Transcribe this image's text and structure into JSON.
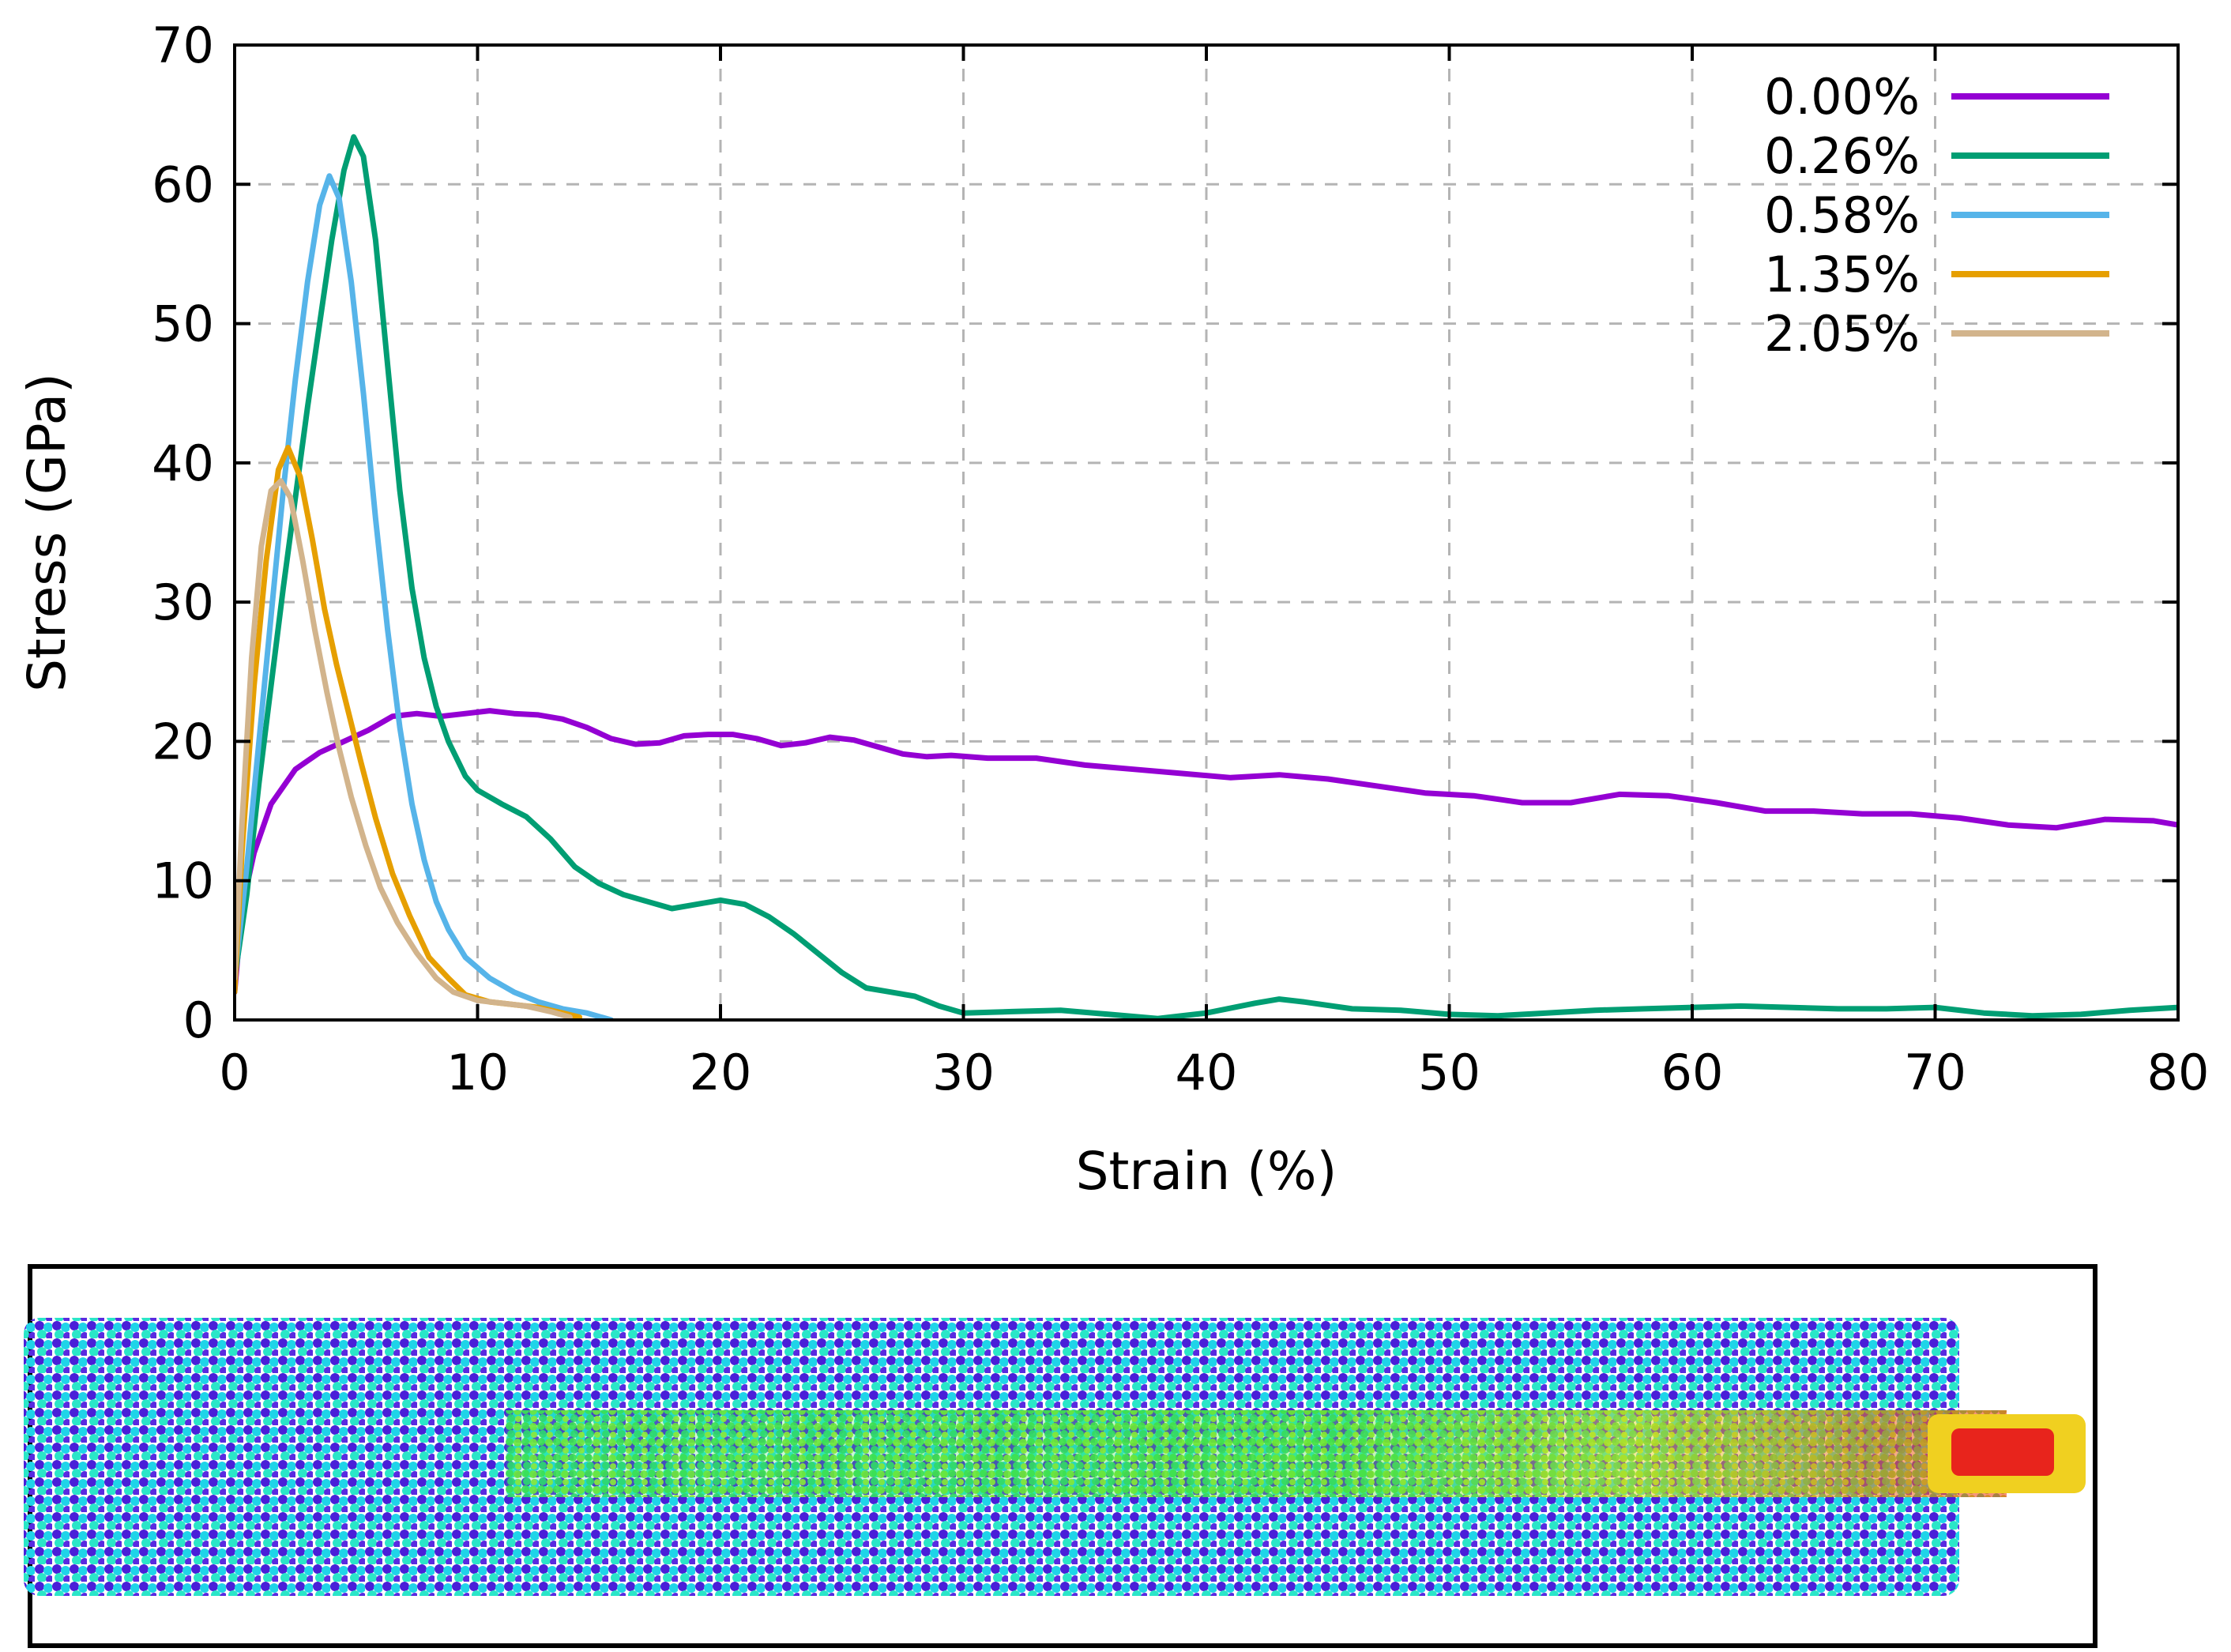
{
  "chart_data": {
    "type": "line",
    "title": "",
    "xlabel": "Strain (%)",
    "ylabel": "Stress (GPa)",
    "xlim": [
      0,
      80
    ],
    "ylim": [
      0,
      70
    ],
    "xticks": [
      0,
      10,
      20,
      30,
      40,
      50,
      60,
      70,
      80
    ],
    "yticks": [
      0,
      10,
      20,
      30,
      40,
      50,
      60,
      70
    ],
    "grid": true,
    "legend_position": "top-right",
    "series": [
      {
        "name": "0.00%",
        "color": "#9400d3",
        "x": [
          0,
          0.3,
          0.8,
          1.5,
          2.5,
          3.5,
          4.5,
          5.5,
          6.5,
          7.5,
          8.5,
          9.5,
          10.5,
          11.5,
          12.5,
          13.5,
          14.5,
          15.5,
          16.5,
          17.5,
          18.5,
          19.5,
          20.5,
          21.5,
          22.5,
          23.5,
          24.5,
          25.5,
          26.5,
          27.5,
          28.5,
          29.5,
          31,
          33,
          35,
          37,
          39,
          41,
          43,
          45,
          47,
          49,
          51,
          53,
          55,
          57,
          59,
          61,
          63,
          65,
          67,
          69,
          71,
          73,
          75,
          77,
          79,
          80
        ],
        "y": [
          2,
          8,
          12,
          15.5,
          18,
          19.2,
          20,
          20.8,
          21.8,
          22,
          21.8,
          22,
          22.2,
          22,
          21.9,
          21.6,
          21,
          20.2,
          19.8,
          19.9,
          20.4,
          20.5,
          20.5,
          20.2,
          19.7,
          19.9,
          20.3,
          20.1,
          19.6,
          19.1,
          18.9,
          19,
          18.8,
          18.8,
          18.3,
          18,
          17.7,
          17.4,
          17.6,
          17.3,
          16.8,
          16.3,
          16.1,
          15.6,
          15.6,
          16.2,
          16.1,
          15.6,
          15,
          15,
          14.8,
          14.8,
          14.5,
          14,
          13.8,
          14.4,
          14.3,
          14
        ]
      },
      {
        "name": "0.26%",
        "color": "#009e73",
        "x": [
          0,
          0.5,
          1,
          1.5,
          2,
          2.5,
          3,
          3.5,
          4,
          4.5,
          4.9,
          5.3,
          5.8,
          6.3,
          6.8,
          7.3,
          7.8,
          8.3,
          8.8,
          9.5,
          10,
          11,
          12,
          13,
          14,
          15,
          16,
          17,
          18,
          19,
          20,
          21,
          22,
          23,
          24,
          25,
          26,
          27,
          28,
          29,
          30,
          32,
          34,
          36,
          38,
          40,
          42,
          43,
          44,
          46,
          48,
          50,
          52,
          54,
          56,
          58,
          60,
          62,
          64,
          66,
          68,
          70,
          72,
          74,
          76,
          78,
          80
        ],
        "y": [
          3,
          9,
          17,
          24,
          31,
          37.5,
          44,
          50,
          56,
          61,
          63.4,
          62,
          56,
          47,
          38,
          31,
          26,
          22.5,
          20,
          17.5,
          16.5,
          15.5,
          14.6,
          13,
          11,
          9.8,
          9,
          8.5,
          8,
          8.3,
          8.6,
          8.3,
          7.4,
          6.2,
          4.8,
          3.4,
          2.3,
          2,
          1.7,
          1,
          0.5,
          0.6,
          0.7,
          0.4,
          0.1,
          0.5,
          1.2,
          1.5,
          1.3,
          0.8,
          0.7,
          0.4,
          0.3,
          0.5,
          0.7,
          0.8,
          0.9,
          1,
          0.9,
          0.8,
          0.8,
          0.9,
          0.5,
          0.3,
          0.4,
          0.7,
          0.9
        ]
      },
      {
        "name": "0.58%",
        "color": "#56b4e9",
        "x": [
          0,
          0.5,
          1,
          1.5,
          2,
          2.5,
          3,
          3.5,
          3.9,
          4.3,
          4.8,
          5.3,
          5.8,
          6.3,
          6.8,
          7.3,
          7.8,
          8.3,
          8.8,
          9.5,
          10.5,
          11.5,
          12.5,
          13.5,
          14.5,
          15.5
        ],
        "y": [
          3,
          11,
          20,
          29,
          38,
          46,
          53,
          58.5,
          60.6,
          59,
          53,
          45,
          36,
          28,
          21,
          15.5,
          11.5,
          8.5,
          6.5,
          4.5,
          3,
          2,
          1.3,
          0.8,
          0.5,
          0
        ]
      },
      {
        "name": "1.35%",
        "color": "#e69f00",
        "x": [
          0,
          0.3,
          0.8,
          1.3,
          1.8,
          2.2,
          2.7,
          3.2,
          3.7,
          4.2,
          4.7,
          5.2,
          5.8,
          6.5,
          7.2,
          8,
          8.8,
          9.5,
          10.5,
          11.5,
          12.5,
          13.5,
          14.2
        ],
        "y": [
          2,
          12,
          24,
          33,
          39.5,
          41.1,
          39,
          34.5,
          29.5,
          25.5,
          22,
          18.5,
          14.5,
          10.5,
          7.5,
          4.5,
          3,
          1.8,
          1.3,
          1.1,
          0.9,
          0.5,
          0.2
        ]
      },
      {
        "name": "2.05%",
        "color": "#d2b48c",
        "x": [
          0,
          0.3,
          0.7,
          1.1,
          1.5,
          1.9,
          2.3,
          2.8,
          3.3,
          3.8,
          4.3,
          4.8,
          5.4,
          6,
          6.7,
          7.5,
          8.3,
          9,
          10,
          11,
          12,
          13,
          13.8
        ],
        "y": [
          3,
          14,
          26,
          34,
          38,
          38.7,
          37.5,
          33,
          28,
          23.5,
          19.5,
          16,
          12.5,
          9.5,
          7,
          4.8,
          3,
          2,
          1.4,
          1.2,
          1,
          0.6,
          0.2
        ]
      }
    ]
  },
  "simulation_panel": {
    "description_icon": "atom-stress-snapshot"
  }
}
